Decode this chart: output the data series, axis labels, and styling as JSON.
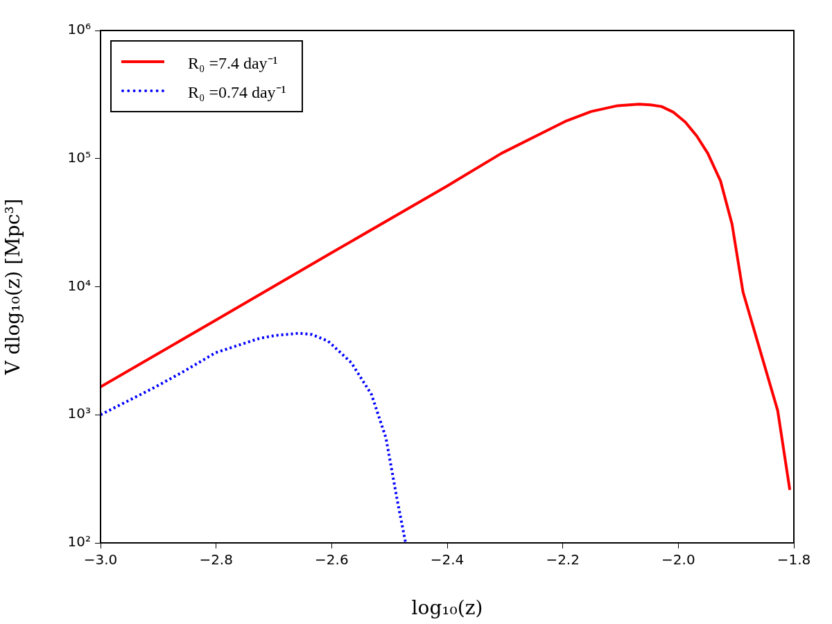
{
  "chart_data": {
    "type": "line",
    "xlabel": "log₁₀(z)",
    "ylabel": "V dlog₁₀(z) [Mpc³]",
    "log": "y",
    "grid": false,
    "legend": "top left",
    "marker": "none",
    "xlim": [
      -3.0,
      -1.8
    ],
    "xticks": [
      {
        "value": -3.0,
        "label": "−3.0"
      },
      {
        "value": -2.8,
        "label": "−2.8"
      },
      {
        "value": -2.6,
        "label": "−2.6"
      },
      {
        "value": -2.4,
        "label": "−2.4"
      },
      {
        "value": -2.2,
        "label": "−2.2"
      },
      {
        "value": -2.0,
        "label": "−2.0"
      },
      {
        "value": -1.8,
        "label": "−1.8"
      }
    ],
    "ylim": [
      100,
      1000000
    ],
    "yticks": [
      {
        "value": 100,
        "label": "10²"
      },
      {
        "value": 1000,
        "label": "10³"
      },
      {
        "value": 10000,
        "label": "10⁴"
      },
      {
        "value": 100000,
        "label": "10⁵"
      },
      {
        "value": 1000000,
        "label": "10⁶"
      }
    ],
    "series": [
      {
        "name": "R₀ =7.4 day⁻¹",
        "color": "#ff0000",
        "line_style": "solid",
        "x": [
          -3.0,
          -2.8,
          -2.6,
          -2.4,
          -2.306,
          -2.196,
          -2.151,
          -2.105,
          -2.068,
          -2.048,
          -2.029,
          -2.009,
          -1.988,
          -1.968,
          -1.949,
          -1.927,
          -1.907,
          -1.888,
          -1.828,
          -1.807
        ],
        "values": [
          1650,
          5500,
          18400,
          61200,
          110000,
          195000,
          233000,
          259000,
          266000,
          263000,
          255000,
          231000,
          193000,
          150000,
          110000,
          67000,
          30800,
          9080,
          1080,
          259
        ]
      },
      {
        "name": "R₀ =0.74 day⁻¹",
        "color": "#0000ff",
        "line_style": "dotted",
        "x": [
          -3.0,
          -2.906,
          -2.856,
          -2.801,
          -2.725,
          -2.696,
          -2.656,
          -2.634,
          -2.606,
          -2.566,
          -2.531,
          -2.506,
          -2.486,
          -2.472
        ],
        "values": [
          1000,
          1640,
          2180,
          3050,
          3950,
          4170,
          4330,
          4230,
          3760,
          2550,
          1440,
          659,
          210,
          100
        ]
      }
    ]
  }
}
